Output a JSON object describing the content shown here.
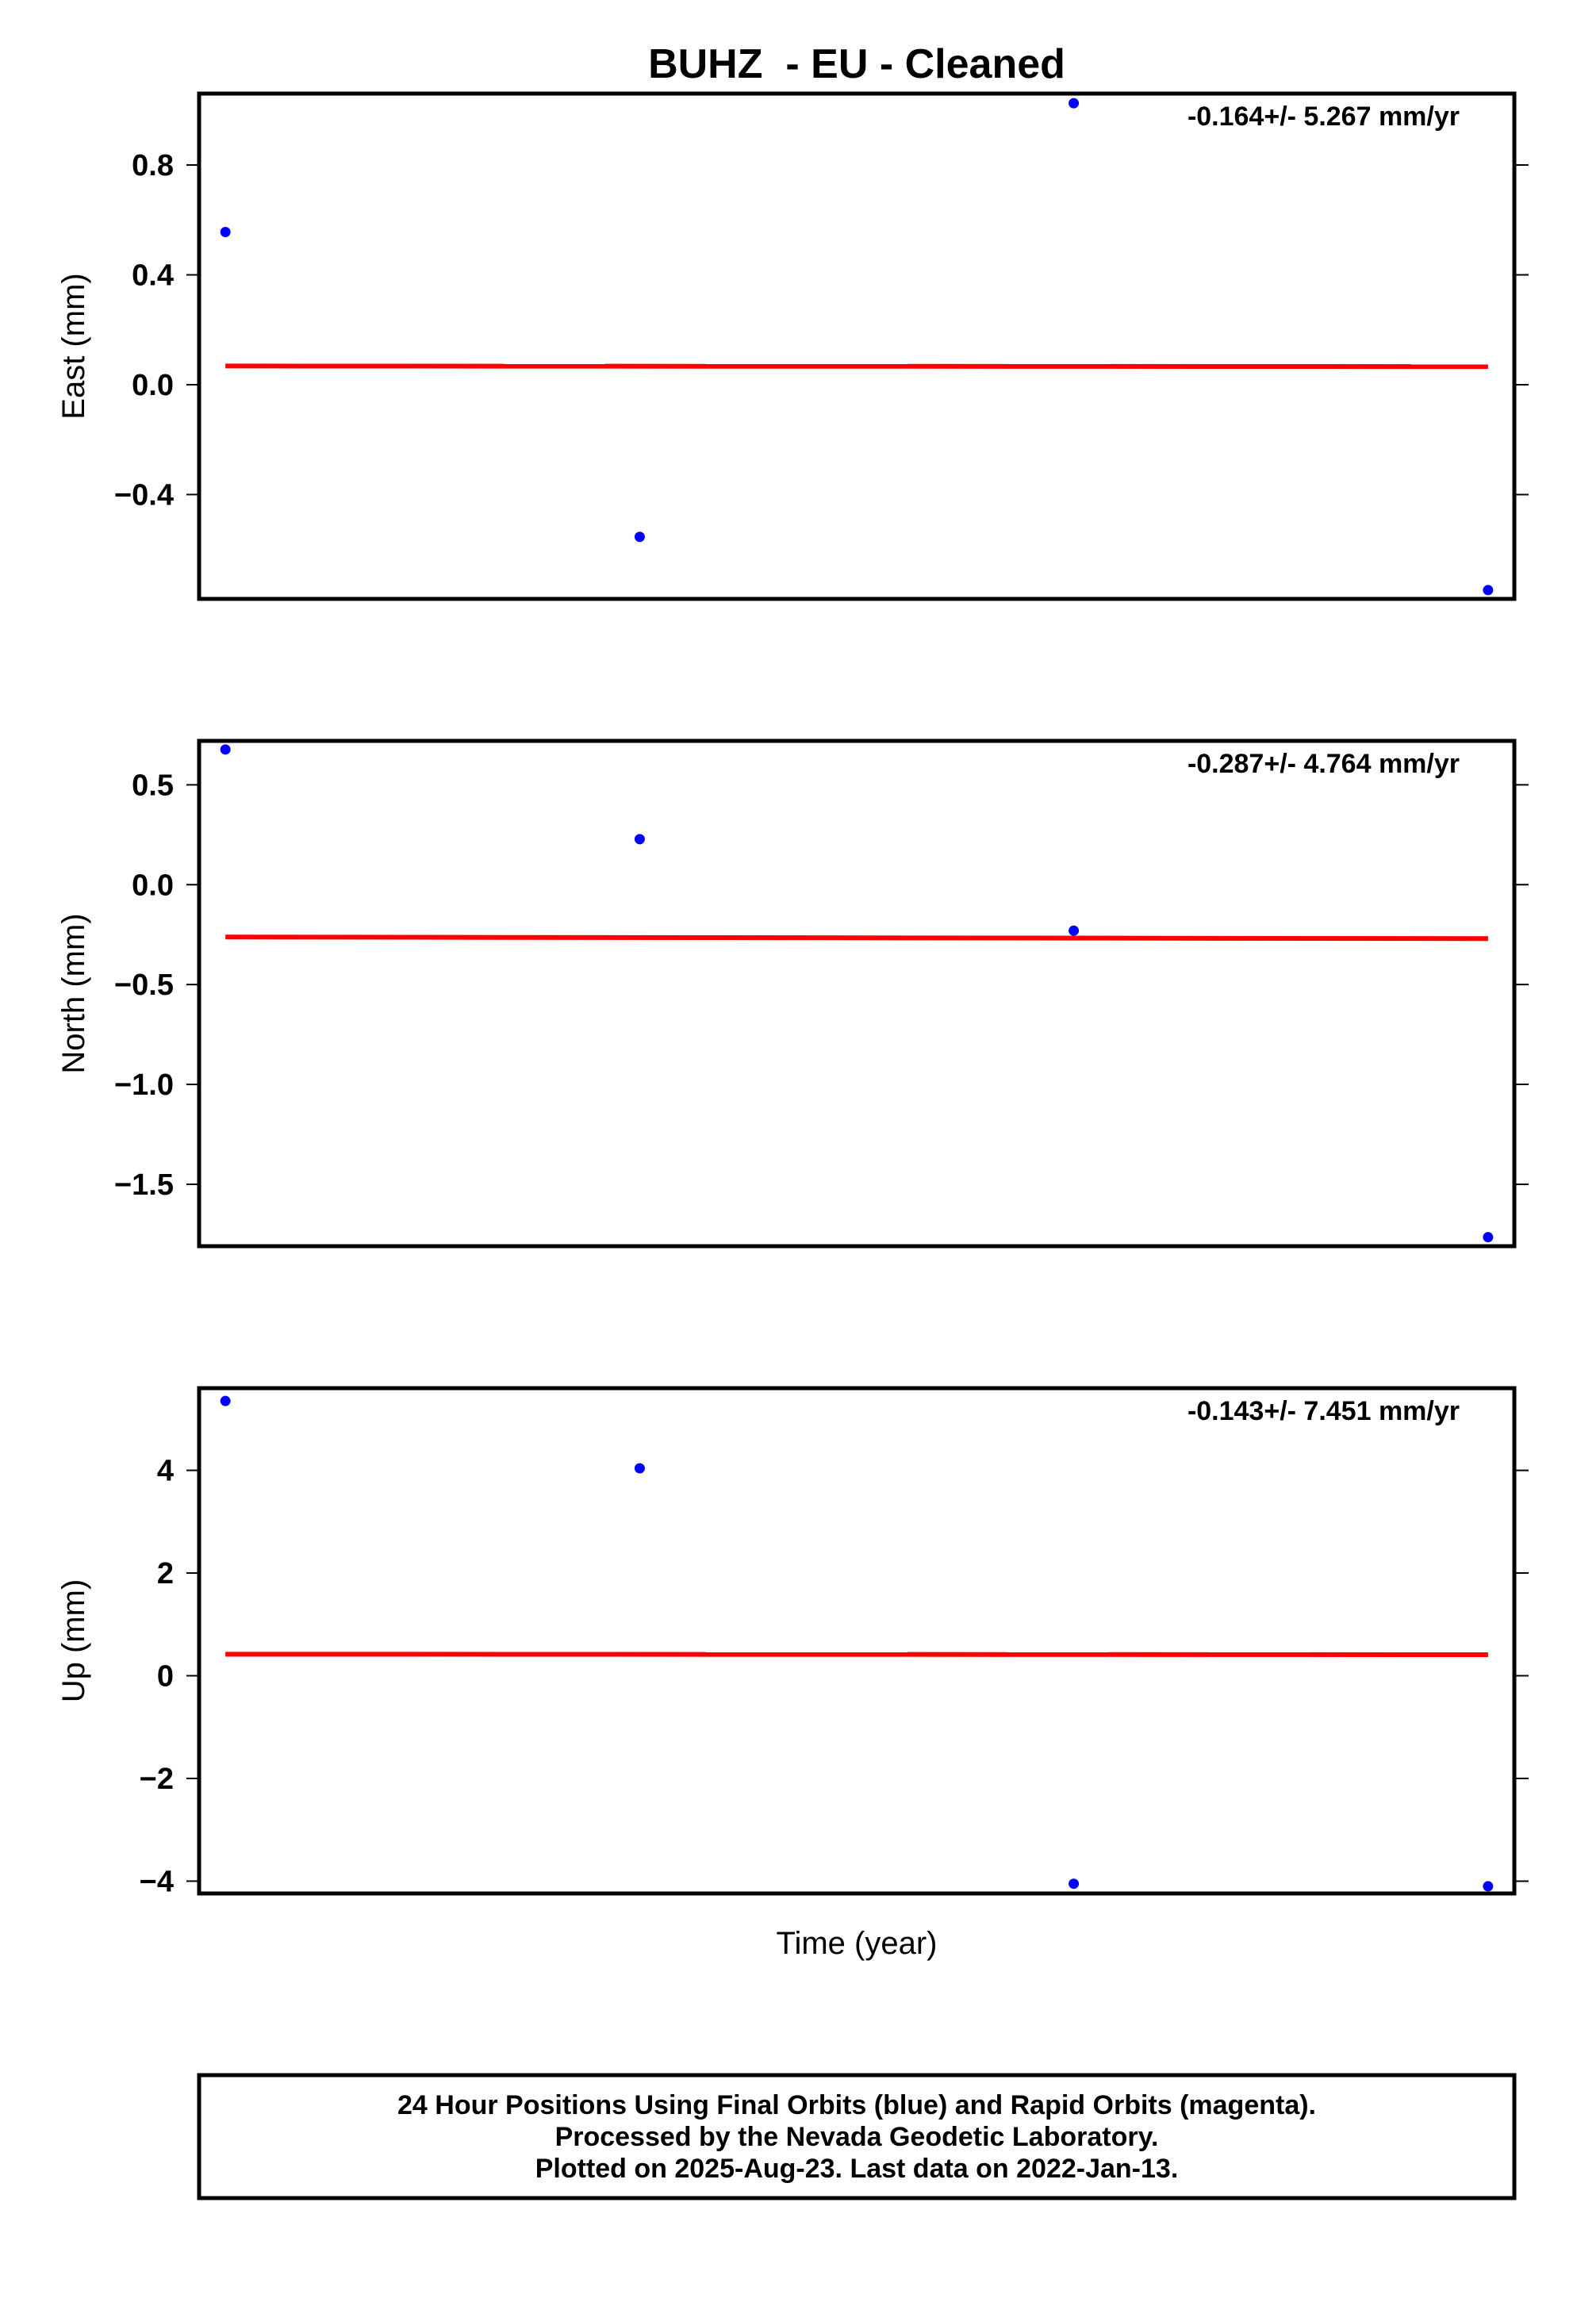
{
  "chart_data": {
    "type": "scatter",
    "title": "BUHZ  - EU - Cleaned",
    "xlabel": "Time (year)",
    "panels": [
      {
        "ylabel": "East (mm)",
        "rate": "-0.164+/- 5.267 mm/yr",
        "ylim": [
          -0.78,
          1.06
        ],
        "yticks": [
          0.8,
          0.4,
          0.0,
          -0.4
        ],
        "ytick_labels": [
          "0.8",
          "0.4",
          "0.0",
          "−0.4"
        ],
        "points_x": [
          0.02,
          0.335,
          0.665,
          0.98
        ],
        "points_y": [
          0.556,
          -0.554,
          1.025,
          -0.748
        ],
        "fit_y": [
          0.068,
          0.066
        ]
      },
      {
        "ylabel": "North (mm)",
        "rate": "-0.287+/- 4.764 mm/yr",
        "ylim": [
          -1.81,
          0.72
        ],
        "yticks": [
          0.5,
          0.0,
          -0.5,
          -1.0,
          -1.5
        ],
        "ytick_labels": [
          "0.5",
          "0.0",
          "−0.5",
          "−1.0",
          "−1.5"
        ],
        "points_x": [
          0.02,
          0.335,
          0.665,
          0.98
        ],
        "points_y": [
          0.677,
          0.228,
          -0.23,
          -1.765
        ],
        "fit_y": [
          -0.262,
          -0.27
        ]
      },
      {
        "ylabel": "Up (mm)",
        "rate": "-0.143+/- 7.451 mm/yr",
        "ylim": [
          -4.24,
          5.6
        ],
        "yticks": [
          4,
          2,
          0,
          -2,
          -4
        ],
        "ytick_labels": [
          "4",
          "2",
          "0",
          "−2",
          "−4"
        ],
        "points_x": [
          0.02,
          0.335,
          0.665,
          0.98
        ],
        "points_y": [
          5.35,
          4.04,
          -4.05,
          -4.1
        ],
        "fit_y": [
          0.42,
          0.41
        ]
      }
    ],
    "point_color": "#0000ff",
    "fit_color": "#ff0000",
    "footer": [
      "24 Hour Positions Using Final Orbits (blue) and Rapid Orbits (magenta).",
      "Processed by the Nevada Geodetic Laboratory.",
      "Plotted on 2025-Aug-23. Last data on 2022-Jan-13."
    ]
  }
}
